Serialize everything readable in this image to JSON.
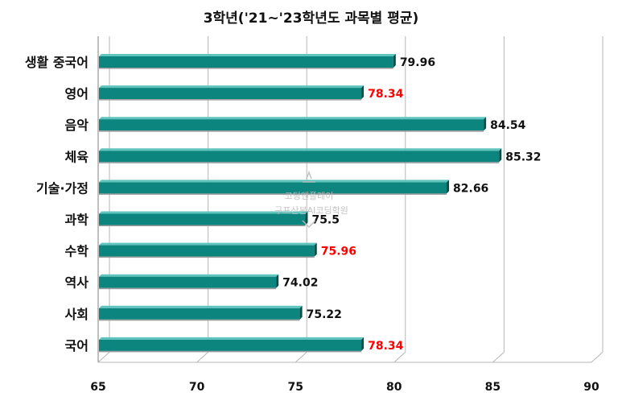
{
  "chart_data": {
    "type": "bar",
    "orientation": "horizontal",
    "title": "3학년('21~'23학년도 과목별 평균)",
    "categories": [
      "생활 중국어",
      "영어",
      "음악",
      "체육",
      "기술·가정",
      "과학",
      "수학",
      "역사",
      "사회",
      "국어"
    ],
    "values": [
      79.96,
      78.34,
      84.54,
      85.32,
      82.66,
      75.5,
      75.96,
      74.02,
      75.22,
      78.34
    ],
    "value_labels": [
      "79.96",
      "78.34",
      "84.54",
      "85.32",
      "82.66",
      "75.5",
      "75.96",
      "74.02",
      "75.22",
      "78.34"
    ],
    "highlighted": [
      false,
      true,
      false,
      false,
      false,
      false,
      true,
      false,
      false,
      true
    ],
    "xlim": [
      65,
      90
    ],
    "xticks": [
      "65",
      "70",
      "75",
      "80",
      "85",
      "90"
    ],
    "xlabel": "",
    "ylabel": "",
    "grid": true,
    "bar_color": "#0b857d",
    "highlight_label_color": "#ff0000",
    "label_color": "#111111",
    "watermark": [
      "코딩앤플레이",
      "구프산본AI코딩학원"
    ]
  }
}
